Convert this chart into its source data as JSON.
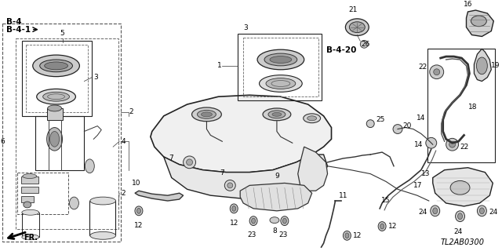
{
  "bg_color": "#ffffff",
  "line_color": "#222222",
  "text_color": "#000000",
  "diagram_code": "TL2AB0300",
  "figsize": [
    6.4,
    3.2
  ],
  "dpi": 100
}
